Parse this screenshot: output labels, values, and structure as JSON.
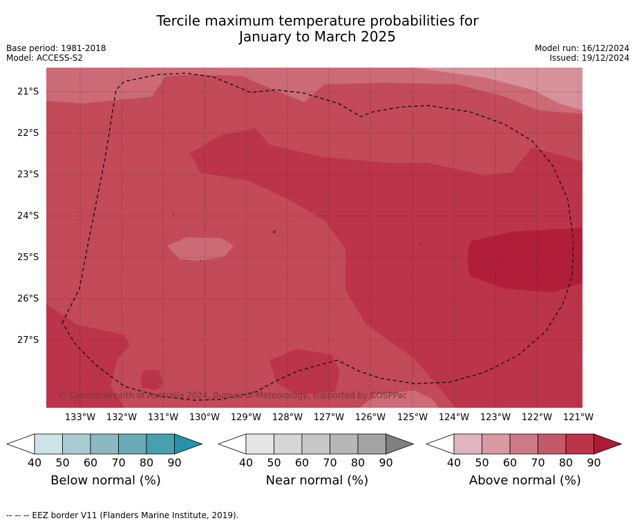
{
  "title": {
    "line1": "Tercile maximum temperature probabilities for",
    "line2": "January to March 2025"
  },
  "meta": {
    "base_period": "Base period: 1981-2018",
    "model": "Model: ACCESS-S2",
    "model_run": "Model run: 16/12/2024",
    "issued": "Issued: 19/12/2024"
  },
  "map": {
    "copyright": "© Commonwealth of Australia 2024, Bureau of Meteorology, supported by COSPPac",
    "lat_labels": [
      "21°S",
      "22°S",
      "23°S",
      "24°S",
      "25°S",
      "26°S",
      "27°S"
    ],
    "lon_labels": [
      "133°W",
      "132°W",
      "131°W",
      "130°W",
      "129°W",
      "128°W",
      "127°W",
      "126°W",
      "125°W",
      "124°W",
      "123°W",
      "122°W",
      "121°W"
    ],
    "colors": {
      "above_60_70": "#cc6b76",
      "above_70_80": "#c24a59",
      "above_80_90": "#bb3449",
      "above_90": "#b01e3a",
      "above_50_60": "#d7929c"
    }
  },
  "legends": [
    {
      "title": "Below normal (%)",
      "ticks": [
        "40",
        "50",
        "60",
        "70",
        "80",
        "90"
      ],
      "colors": [
        "#ffffff",
        "#cce3e8",
        "#a9cbd2",
        "#8ab8c3",
        "#6aa9b6",
        "#46a0b1",
        "#2592a7"
      ]
    },
    {
      "title": "Near normal (%)",
      "ticks": [
        "40",
        "50",
        "60",
        "70",
        "80",
        "90"
      ],
      "colors": [
        "#ffffff",
        "#e6e6e6",
        "#d6d6d6",
        "#c7c7c7",
        "#b7b7b7",
        "#a3a3a3",
        "#808080"
      ]
    },
    {
      "title": "Above normal (%)",
      "ticks": [
        "40",
        "50",
        "60",
        "70",
        "80",
        "90"
      ],
      "colors": [
        "#ffffff",
        "#e0b5bd",
        "#d79aa3",
        "#cc7a85",
        "#c4596a",
        "#bb3449",
        "#ae1a36"
      ]
    }
  ],
  "footnote": "--  --  -- EEZ border V11 (Flanders Marine Institute, 2019)."
}
